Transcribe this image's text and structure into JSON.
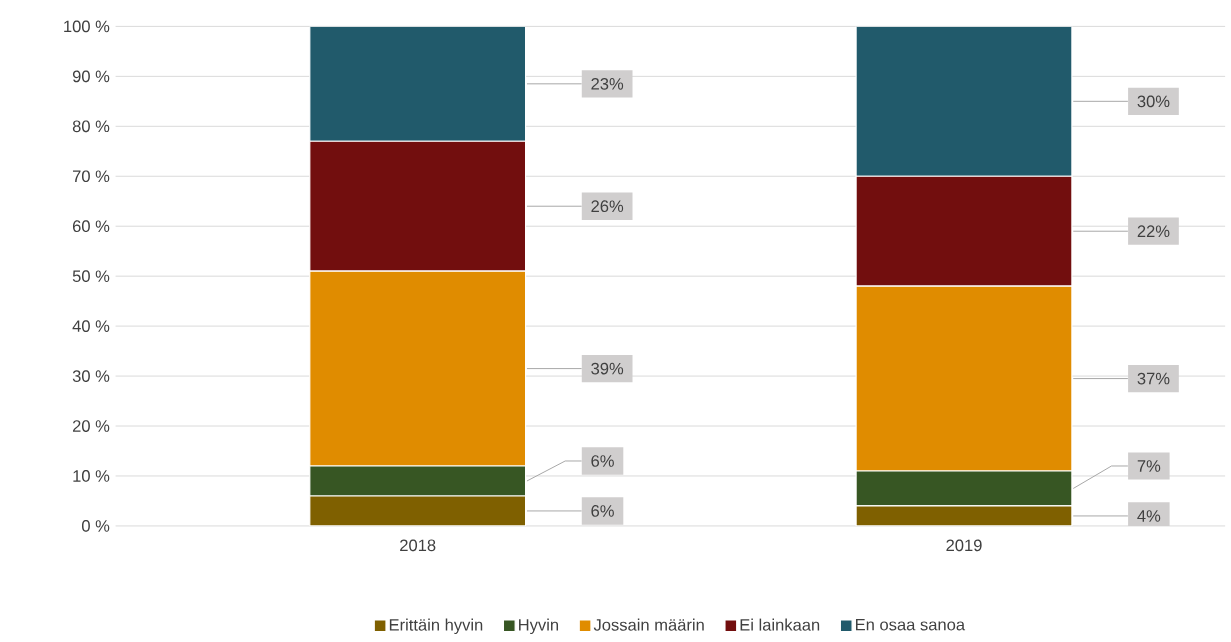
{
  "chart_data": {
    "type": "bar",
    "stacked": true,
    "categories": [
      "2018",
      "2019"
    ],
    "series": [
      {
        "name": "Erittäin hyvin",
        "color": "#7f6000",
        "values": [
          6,
          4
        ],
        "value_labels": [
          "6%",
          "4%"
        ]
      },
      {
        "name": "Hyvin",
        "color": "#375623",
        "values": [
          6,
          7
        ],
        "value_labels": [
          "6%",
          "7%"
        ]
      },
      {
        "name": "Jossain määrin",
        "color": "#e08c00",
        "values": [
          39,
          37
        ],
        "value_labels": [
          "39%",
          "37%"
        ]
      },
      {
        "name": "Ei lainkaan",
        "color": "#720e0e",
        "values": [
          26,
          22
        ],
        "value_labels": [
          "26%",
          "22%"
        ]
      },
      {
        "name": "En osaa sanoa",
        "color": "#215a6b",
        "values": [
          23,
          30
        ],
        "value_labels": [
          "23%",
          "30%"
        ]
      }
    ],
    "ylim": [
      0,
      100
    ],
    "yticks": [
      {
        "value": 0,
        "label": "0 %"
      },
      {
        "value": 10,
        "label": "10 %"
      },
      {
        "value": 20,
        "label": "20 %"
      },
      {
        "value": 30,
        "label": "30 %"
      },
      {
        "value": 40,
        "label": "40 %"
      },
      {
        "value": 50,
        "label": "50 %"
      },
      {
        "value": 60,
        "label": "60 %"
      },
      {
        "value": 70,
        "label": "70 %"
      },
      {
        "value": 80,
        "label": "80 %"
      },
      {
        "value": 90,
        "label": "90 %"
      },
      {
        "value": 100,
        "label": "100 %"
      }
    ],
    "grid": "y",
    "legend": "bottom"
  }
}
